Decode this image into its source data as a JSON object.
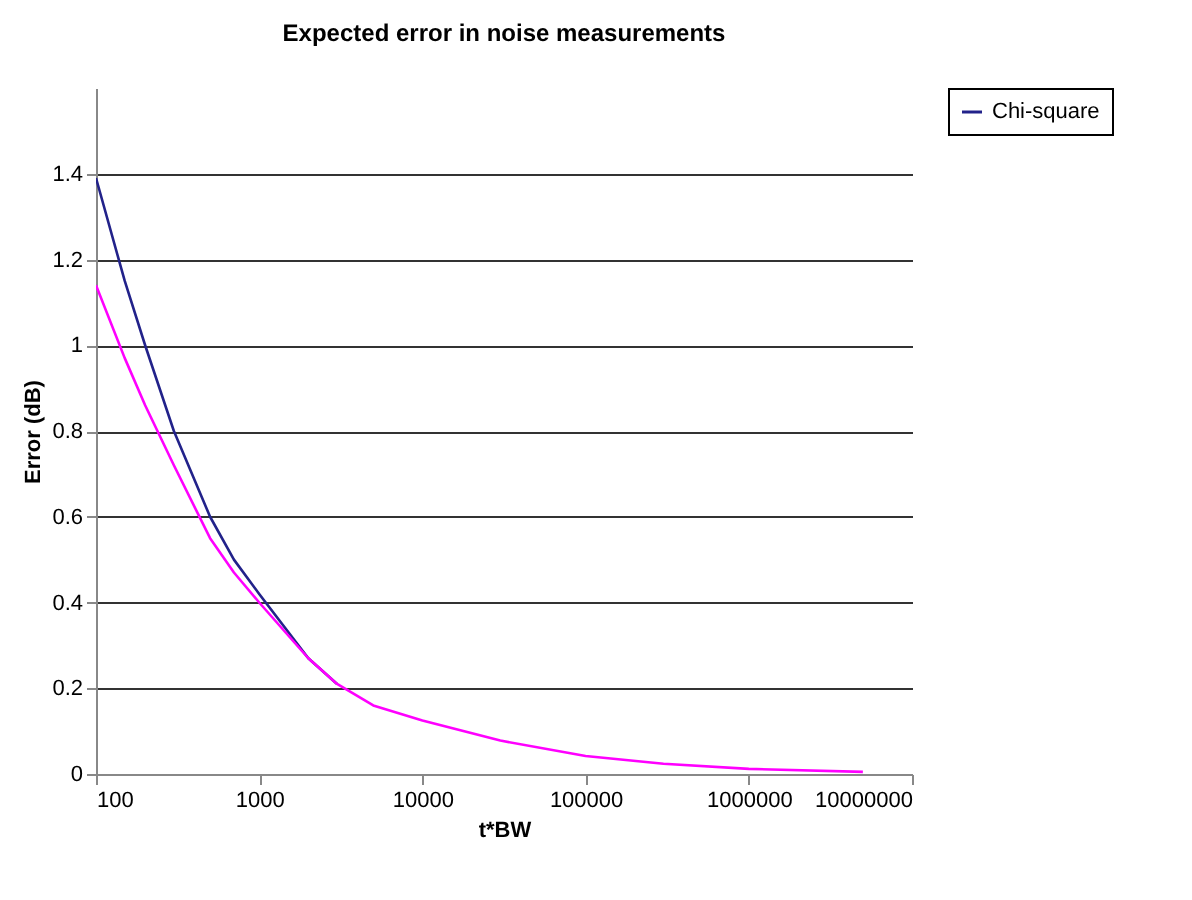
{
  "chart_data": {
    "type": "line",
    "title": "Expected error in noise measurements",
    "xlabel": "t*BW",
    "ylabel": "Error (dB)",
    "x": [
      100,
      150,
      200,
      300,
      500,
      700,
      1000,
      2000,
      3000,
      5000,
      10000,
      30000,
      100000,
      300000,
      1000000,
      5000000
    ],
    "series": [
      {
        "name": "Chi-square",
        "color": "#22228a",
        "values": [
          1.39,
          1.15,
          1.0,
          0.8,
          0.6,
          0.5,
          0.42,
          0.27,
          0.21,
          null,
          null,
          null,
          null,
          null,
          null,
          null
        ]
      },
      {
        "color": "#ff00ff",
        "values": [
          1.14,
          0.97,
          0.86,
          0.72,
          0.55,
          0.47,
          0.4,
          0.27,
          0.21,
          0.16,
          0.125,
          0.078,
          0.042,
          0.024,
          0.012,
          0.005
        ]
      }
    ],
    "log": "x",
    "xlim": [
      100,
      10000000
    ],
    "xticks": [
      100,
      1000,
      10000,
      100000,
      1000000,
      10000000
    ],
    "ylim": [
      0,
      1.6
    ],
    "yticks": [
      0,
      0.2,
      0.4,
      0.6,
      0.8,
      1,
      1.2,
      1.4
    ],
    "grid": "y",
    "legend": "right",
    "marker": "none",
    "line_style": "solid"
  }
}
